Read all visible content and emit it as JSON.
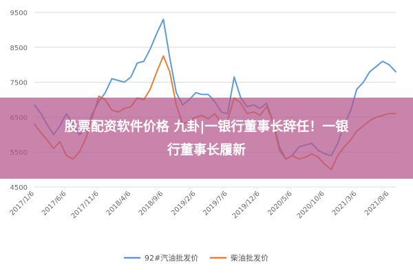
{
  "chart_data": {
    "type": "line",
    "title": "",
    "xlabel": "",
    "ylabel": "",
    "ylim": [
      4500,
      9500
    ],
    "yticks": [
      4500,
      5500,
      6500,
      7500,
      8500,
      9500
    ],
    "x_tick_labels": [
      "2017/1/6",
      "2017/6/6",
      "2017/11/6",
      "2018/4/6",
      "2018/9/6",
      "2019/2/6",
      "2019/7/6",
      "2019/12/6",
      "2020/5/6",
      "2020/10/6",
      "2021/3/6",
      "2021/8/6"
    ],
    "grid": true,
    "legend_position": "bottom",
    "series": [
      {
        "name": "92#汽油批发价",
        "color": "#5b9bd5",
        "x": [
          "2017-01-06",
          "2017-02-06",
          "2017-03-06",
          "2017-04-06",
          "2017-05-06",
          "2017-06-06",
          "2017-07-06",
          "2017-08-06",
          "2017-09-06",
          "2017-10-06",
          "2017-11-06",
          "2017-12-06",
          "2018-01-06",
          "2018-02-06",
          "2018-03-06",
          "2018-04-06",
          "2018-05-06",
          "2018-06-06",
          "2018-07-06",
          "2018-08-06",
          "2018-09-06",
          "2018-10-06",
          "2018-11-06",
          "2018-12-06",
          "2019-01-06",
          "2019-02-06",
          "2019-03-06",
          "2019-04-06",
          "2019-05-06",
          "2019-06-06",
          "2019-07-06",
          "2019-08-06",
          "2019-09-06",
          "2019-10-06",
          "2019-11-06",
          "2019-12-06",
          "2020-01-06",
          "2020-02-06",
          "2020-03-06",
          "2020-04-06",
          "2020-05-06",
          "2020-06-06",
          "2020-07-06",
          "2020-08-06",
          "2020-09-06",
          "2020-10-06",
          "2020-11-06",
          "2020-12-06",
          "2021-01-06",
          "2021-02-06",
          "2021-03-06",
          "2021-04-06",
          "2021-05-06",
          "2021-06-06",
          "2021-07-06",
          "2021-08-06",
          "2021-09-06"
        ],
        "y": [
          6850,
          6600,
          6300,
          6000,
          6250,
          6600,
          6300,
          6000,
          6150,
          6600,
          6950,
          7200,
          7600,
          7550,
          7500,
          7650,
          8050,
          8100,
          8450,
          8900,
          9300,
          8200,
          7200,
          6850,
          7000,
          7200,
          7150,
          7150,
          6950,
          6650,
          6600,
          7650,
          7050,
          6800,
          6850,
          6750,
          6900,
          6350,
          5650,
          5300,
          5400,
          5650,
          5700,
          5750,
          5550,
          5450,
          5400,
          5750,
          6300,
          6700,
          7300,
          7500,
          7800,
          7950,
          8100,
          8000,
          7800
        ]
      },
      {
        "name": "柴油批发价",
        "color": "#ed7d31",
        "x": [
          "2017-01-06",
          "2017-02-06",
          "2017-03-06",
          "2017-04-06",
          "2017-05-06",
          "2017-06-06",
          "2017-07-06",
          "2017-08-06",
          "2017-09-06",
          "2017-10-06",
          "2017-11-06",
          "2017-12-06",
          "2018-01-06",
          "2018-02-06",
          "2018-03-06",
          "2018-04-06",
          "2018-05-06",
          "2018-06-06",
          "2018-07-06",
          "2018-08-06",
          "2018-09-06",
          "2018-10-06",
          "2018-11-06",
          "2018-12-06",
          "2019-01-06",
          "2019-02-06",
          "2019-03-06",
          "2019-04-06",
          "2019-05-06",
          "2019-06-06",
          "2019-07-06",
          "2019-08-06",
          "2019-09-06",
          "2019-10-06",
          "2019-11-06",
          "2019-12-06",
          "2020-01-06",
          "2020-02-06",
          "2020-03-06",
          "2020-04-06",
          "2020-05-06",
          "2020-06-06",
          "2020-07-06",
          "2020-08-06",
          "2020-09-06",
          "2020-10-06",
          "2020-11-06",
          "2020-12-06",
          "2021-01-06",
          "2021-02-06",
          "2021-03-06",
          "2021-04-06",
          "2021-05-06",
          "2021-06-06",
          "2021-07-06",
          "2021-08-06",
          "2021-09-06"
        ],
        "y": [
          6300,
          6050,
          5850,
          5600,
          5800,
          5400,
          5300,
          5500,
          5900,
          6500,
          7100,
          7000,
          6700,
          6650,
          6750,
          6800,
          7050,
          7000,
          7300,
          7800,
          8250,
          7800,
          6850,
          6300,
          6400,
          6500,
          6550,
          6450,
          6600,
          6350,
          6400,
          7050,
          6900,
          6600,
          6650,
          6550,
          6800,
          6350,
          5550,
          5300,
          5400,
          5300,
          5350,
          5450,
          5350,
          5150,
          5000,
          5400,
          5650,
          5850,
          6100,
          6250,
          6400,
          6500,
          6550,
          6600,
          6600
        ]
      }
    ]
  },
  "banner": {
    "line1": "股票配资软件价格 九卦|一银行董事长辞任！一银",
    "line2": "行董事长履新"
  }
}
